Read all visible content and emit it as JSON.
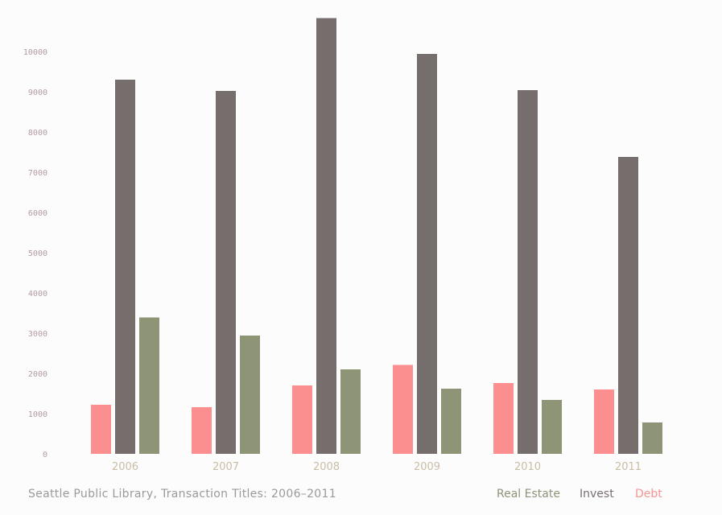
{
  "footer": {
    "title": "Seattle Public Library, Transaction Titles: 2006–2011"
  },
  "legend": {
    "items": [
      {
        "label": "Real Estate",
        "color": "#8e937a"
      },
      {
        "label": "Invest",
        "color": "#7a6f6f"
      },
      {
        "label": "Debt",
        "color": "#f49694"
      }
    ]
  },
  "chart_data": {
    "type": "bar",
    "title": "Seattle Public Library, Transaction Titles: 2006–2011",
    "xlabel": "",
    "ylabel": "",
    "ylim": [
      0,
      10800
    ],
    "yticks": [
      0,
      1000,
      2000,
      3000,
      4000,
      5000,
      6000,
      7000,
      8000,
      9000,
      10000
    ],
    "categories": [
      "2006",
      "2007",
      "2008",
      "2009",
      "2010",
      "2011"
    ],
    "series": [
      {
        "name": "Debt",
        "color": "#fb8f8f",
        "values": [
          1220,
          1160,
          1700,
          2210,
          1760,
          1600
        ]
      },
      {
        "name": "Invest",
        "color": "#766d6d",
        "values": [
          9300,
          9020,
          10830,
          9940,
          9040,
          7380
        ]
      },
      {
        "name": "Real Estate",
        "color": "#8e9476",
        "values": [
          3390,
          2940,
          2100,
          1620,
          1340,
          780
        ]
      }
    ],
    "grid": false,
    "legend_position": "bottom-right",
    "axis_tick_color": "#b39aa4",
    "category_label_color": "#c9bda4"
  }
}
